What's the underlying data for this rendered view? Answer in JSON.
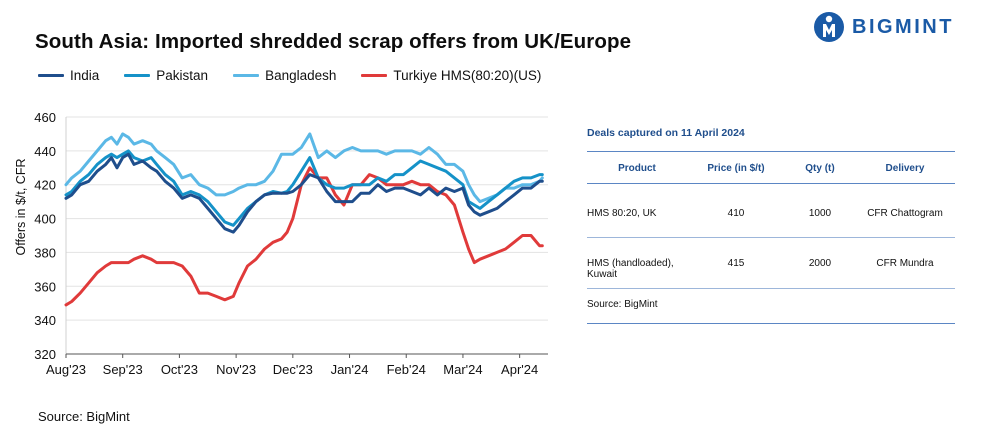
{
  "title": "South Asia: Imported shredded scrap offers from UK/Europe",
  "brand": {
    "name": "BIGMINT",
    "color": "#1a5aa6"
  },
  "footer_source": "Source:  BigMint",
  "table": {
    "caption": "Deals captured on 11 April 2024",
    "headers": [
      "Product",
      "Price (in $/t)",
      "Qty (t)",
      "Delivery"
    ],
    "rows": [
      [
        "HMS 80:20, UK",
        "410",
        "1000",
        "CFR Chattogram"
      ],
      [
        "HMS (handloaded), Kuwait",
        "415",
        "2000",
        "CFR Mundra"
      ]
    ],
    "source": "Source: BigMint"
  },
  "chart_data": {
    "type": "line",
    "title": "South Asia: Imported shredded scrap offers from UK/Europe",
    "xlabel": "",
    "ylabel": "Offers in $/t, CFR",
    "ylim": [
      320,
      460
    ],
    "yticks": [
      320,
      340,
      360,
      380,
      400,
      420,
      440,
      460
    ],
    "xlim": [
      0,
      8.5
    ],
    "xticks": [
      {
        "x": 0,
        "label": "Aug'23"
      },
      {
        "x": 1,
        "label": "Sep'23"
      },
      {
        "x": 2,
        "label": "Oct'23"
      },
      {
        "x": 3,
        "label": "Nov'23"
      },
      {
        "x": 4,
        "label": "Dec'23"
      },
      {
        "x": 5,
        "label": "Jan'24"
      },
      {
        "x": 6,
        "label": "Feb'24"
      },
      {
        "x": 7,
        "label": "Mar'24"
      },
      {
        "x": 8,
        "label": "Apr'24"
      }
    ],
    "series": [
      {
        "name": "India",
        "color": "#1f4e8c",
        "x": [
          0,
          0.1,
          0.25,
          0.4,
          0.55,
          0.7,
          0.8,
          0.9,
          1.0,
          1.1,
          1.2,
          1.35,
          1.5,
          1.6,
          1.75,
          1.9,
          2.05,
          2.2,
          2.35,
          2.5,
          2.65,
          2.8,
          2.95,
          3.05,
          3.2,
          3.35,
          3.5,
          3.65,
          3.8,
          3.9,
          4.0,
          4.15,
          4.3,
          4.45,
          4.6,
          4.75,
          4.9,
          5.05,
          5.2,
          5.35,
          5.5,
          5.65,
          5.8,
          5.95,
          6.1,
          6.25,
          6.4,
          6.55,
          6.7,
          6.85,
          7.0,
          7.1,
          7.2,
          7.3,
          7.45,
          7.6,
          7.75,
          7.9,
          8.05,
          8.2,
          8.35,
          8.4
        ],
        "values": [
          412,
          414,
          420,
          422,
          428,
          432,
          436,
          430,
          436,
          438,
          432,
          434,
          430,
          428,
          422,
          418,
          412,
          414,
          412,
          406,
          400,
          394,
          392,
          396,
          404,
          410,
          414,
          415,
          415,
          415,
          416,
          420,
          426,
          424,
          416,
          410,
          410,
          410,
          415,
          415,
          420,
          416,
          418,
          418,
          416,
          414,
          418,
          414,
          418,
          416,
          418,
          408,
          404,
          402,
          404,
          406,
          410,
          414,
          418,
          418,
          422,
          422
        ]
      },
      {
        "name": "Pakistan",
        "color": "#1592c8",
        "x": [
          0,
          0.1,
          0.25,
          0.4,
          0.55,
          0.7,
          0.8,
          0.9,
          1.0,
          1.1,
          1.2,
          1.35,
          1.5,
          1.6,
          1.75,
          1.9,
          2.05,
          2.2,
          2.35,
          2.5,
          2.65,
          2.8,
          2.95,
          3.05,
          3.2,
          3.35,
          3.5,
          3.65,
          3.8,
          3.9,
          4.0,
          4.15,
          4.3,
          4.45,
          4.6,
          4.75,
          4.9,
          5.05,
          5.2,
          5.35,
          5.5,
          5.65,
          5.8,
          5.95,
          6.1,
          6.25,
          6.4,
          6.55,
          6.7,
          6.85,
          7.0,
          7.1,
          7.2,
          7.3,
          7.45,
          7.6,
          7.75,
          7.9,
          8.05,
          8.2,
          8.35,
          8.4
        ],
        "values": [
          414,
          416,
          422,
          426,
          432,
          436,
          438,
          436,
          438,
          440,
          436,
          434,
          436,
          432,
          426,
          422,
          414,
          416,
          414,
          410,
          404,
          398,
          396,
          400,
          406,
          410,
          414,
          416,
          415,
          416,
          420,
          428,
          436,
          424,
          420,
          418,
          418,
          420,
          420,
          420,
          424,
          422,
          426,
          426,
          430,
          434,
          432,
          430,
          428,
          424,
          420,
          410,
          408,
          406,
          410,
          414,
          418,
          422,
          424,
          424,
          426,
          426
        ]
      },
      {
        "name": "Bangladesh",
        "color": "#5bb8e6",
        "x": [
          0,
          0.1,
          0.25,
          0.4,
          0.55,
          0.7,
          0.8,
          0.9,
          1.0,
          1.1,
          1.2,
          1.35,
          1.5,
          1.6,
          1.75,
          1.9,
          2.05,
          2.2,
          2.35,
          2.5,
          2.65,
          2.8,
          2.95,
          3.05,
          3.2,
          3.35,
          3.5,
          3.65,
          3.8,
          3.9,
          4.0,
          4.15,
          4.3,
          4.45,
          4.6,
          4.75,
          4.9,
          5.05,
          5.2,
          5.35,
          5.5,
          5.65,
          5.8,
          5.95,
          6.1,
          6.25,
          6.4,
          6.55,
          6.7,
          6.85,
          7.0,
          7.1,
          7.2,
          7.3,
          7.45,
          7.6,
          7.75,
          7.9,
          8.05,
          8.2,
          8.35,
          8.4
        ],
        "values": [
          420,
          424,
          428,
          434,
          440,
          446,
          448,
          444,
          450,
          448,
          444,
          446,
          444,
          440,
          436,
          432,
          424,
          426,
          420,
          418,
          414,
          414,
          416,
          418,
          420,
          420,
          422,
          428,
          438,
          438,
          438,
          442,
          450,
          436,
          440,
          436,
          440,
          442,
          440,
          440,
          440,
          438,
          440,
          440,
          440,
          438,
          442,
          438,
          432,
          432,
          428,
          420,
          414,
          410,
          412,
          414,
          418,
          418,
          420,
          420,
          422,
          424
        ]
      },
      {
        "name": "Turkiye HMS(80:20)(US)",
        "color": "#e03a3a",
        "x": [
          0,
          0.1,
          0.25,
          0.4,
          0.55,
          0.7,
          0.8,
          0.9,
          1.0,
          1.1,
          1.2,
          1.35,
          1.5,
          1.6,
          1.75,
          1.9,
          2.05,
          2.2,
          2.35,
          2.5,
          2.65,
          2.8,
          2.95,
          3.05,
          3.2,
          3.35,
          3.5,
          3.65,
          3.8,
          3.9,
          4.0,
          4.15,
          4.3,
          4.45,
          4.6,
          4.75,
          4.9,
          5.05,
          5.2,
          5.35,
          5.5,
          5.65,
          5.8,
          5.95,
          6.1,
          6.25,
          6.4,
          6.55,
          6.7,
          6.85,
          7.0,
          7.1,
          7.2,
          7.3,
          7.45,
          7.6,
          7.75,
          7.9,
          8.05,
          8.2,
          8.35,
          8.4
        ],
        "values": [
          349,
          351,
          356,
          362,
          368,
          372,
          374,
          374,
          374,
          374,
          376,
          378,
          376,
          374,
          374,
          374,
          372,
          366,
          356,
          356,
          354,
          352,
          354,
          362,
          372,
          376,
          382,
          386,
          388,
          392,
          400,
          420,
          430,
          424,
          424,
          414,
          408,
          420,
          420,
          426,
          424,
          420,
          420,
          420,
          422,
          420,
          420,
          416,
          414,
          408,
          392,
          382,
          374,
          376,
          378,
          380,
          382,
          386,
          390,
          390,
          384,
          384
        ]
      }
    ]
  }
}
